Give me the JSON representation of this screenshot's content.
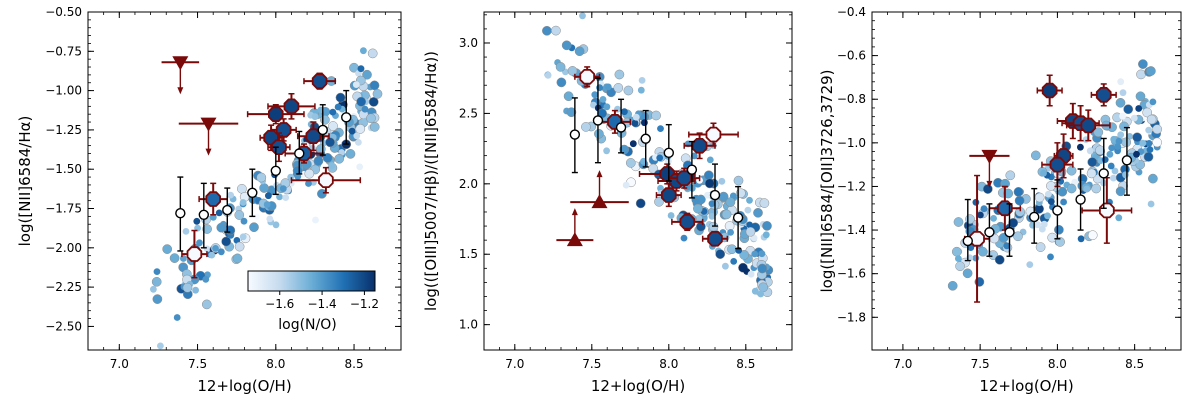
{
  "figure": {
    "colorbar": {
      "label": "log(N/O)",
      "min": -1.75,
      "max": -1.15,
      "ticks": [
        -1.6,
        -1.4,
        -1.2
      ],
      "tick_labels": [
        "−1.6",
        "−1.4",
        "−1.2"
      ],
      "colors": [
        "#f7fbff",
        "#c6dbef",
        "#6baed6",
        "#2171b5",
        "#08306b"
      ]
    },
    "series_names": [
      "cloud",
      "median",
      "stack",
      "upper limit",
      "lower limit"
    ]
  },
  "chart_data": [
    {
      "type": "scatter",
      "panel": "left",
      "xlabel": "12+log(O/H)",
      "ylabel": "log([NII]6584/Hα)",
      "xlim": [
        6.8,
        8.8
      ],
      "ylim": [
        -2.65,
        -0.5
      ],
      "xticks": [
        7.0,
        7.5,
        8.0,
        8.5
      ],
      "xtick_labels": [
        "7.0",
        "7.5",
        "8.0",
        "8.5"
      ],
      "yticks": [
        -2.5,
        -2.25,
        -2.0,
        -1.75,
        -1.5,
        -1.25,
        -1.0,
        -0.75,
        -0.5
      ],
      "ytick_labels": [
        "−2.50",
        "−2.25",
        "−2.00",
        "−1.75",
        "−1.50",
        "−1.25",
        "−1.00",
        "−0.75",
        "−0.50"
      ],
      "cloud": {
        "slope": 0.93,
        "intercept": -9.07,
        "scatter": 0.14,
        "x_range": [
          7.2,
          8.65
        ],
        "count": 220
      },
      "medians": [
        {
          "x": 7.39,
          "y": -1.78,
          "ylo": -2.02,
          "yhi": -1.55
        },
        {
          "x": 7.54,
          "y": -1.79,
          "ylo": -2.0,
          "yhi": -1.59
        },
        {
          "x": 7.69,
          "y": -1.76,
          "ylo": -1.9,
          "yhi": -1.62
        },
        {
          "x": 7.85,
          "y": -1.65,
          "ylo": -1.8,
          "yhi": -1.5
        },
        {
          "x": 8.0,
          "y": -1.51,
          "ylo": -1.66,
          "yhi": -1.36
        },
        {
          "x": 8.15,
          "y": -1.4,
          "ylo": -1.53,
          "yhi": -1.26
        },
        {
          "x": 8.3,
          "y": -1.25,
          "ylo": -1.41,
          "yhi": -1.09
        },
        {
          "x": 8.45,
          "y": -1.17,
          "ylo": -1.34,
          "yhi": -1.0
        }
      ],
      "stacks": [
        {
          "x": 7.48,
          "y": -2.04,
          "xerr": 0.08,
          "yerr": 0.15,
          "nlog": -1.75
        },
        {
          "x": 7.6,
          "y": -1.69,
          "xerr": 0.09,
          "yerr": 0.1,
          "nlog": -1.28
        },
        {
          "x": 8.0,
          "y": -1.15,
          "xerr": 0.18,
          "yerr": 0.06,
          "nlog": -1.18
        },
        {
          "x": 8.1,
          "y": -1.1,
          "xerr": 0.15,
          "yerr": 0.08,
          "nlog": -1.2
        },
        {
          "x": 8.05,
          "y": -1.25,
          "xerr": 0.08,
          "yerr": 0.07,
          "nlog": -1.22
        },
        {
          "x": 7.97,
          "y": -1.3,
          "xerr": 0.07,
          "yerr": 0.08,
          "nlog": -1.2
        },
        {
          "x": 8.02,
          "y": -1.36,
          "xerr": 0.07,
          "yerr": 0.09,
          "nlog": -1.22
        },
        {
          "x": 8.18,
          "y": -1.4,
          "xerr": 0.12,
          "yerr": 0.06,
          "nlog": -1.25
        },
        {
          "x": 8.24,
          "y": -1.29,
          "xerr": 0.1,
          "yerr": 0.09,
          "nlog": -1.21
        },
        {
          "x": 8.28,
          "y": -0.94,
          "xerr": 0.1,
          "yerr": 0.05,
          "nlog": -1.22
        },
        {
          "x": 8.32,
          "y": -1.57,
          "xerr": 0.22,
          "yerr": 0.08,
          "nlog": -1.75
        }
      ],
      "upper_limits": [
        {
          "x": 7.39,
          "y": -0.82,
          "xerr": 0.12
        },
        {
          "x": 7.57,
          "y": -1.21,
          "xerr": 0.19
        }
      ],
      "lower_limits": [],
      "colorbar_panel": true
    },
    {
      "type": "scatter",
      "panel": "middle",
      "xlabel": "12+log(O/H)",
      "ylabel": "log(([OIII]5007/Hβ)/([NII]6584/Hα))",
      "xlim": [
        6.8,
        8.8
      ],
      "ylim": [
        0.82,
        3.22
      ],
      "xticks": [
        7.0,
        7.5,
        8.0,
        8.5
      ],
      "xtick_labels": [
        "7.0",
        "7.5",
        "8.0",
        "8.5"
      ],
      "yticks": [
        1.0,
        1.5,
        2.0,
        2.5,
        3.0
      ],
      "ytick_labels": [
        "1.0",
        "1.5",
        "2.0",
        "2.5",
        "3.0"
      ],
      "cloud": {
        "slope": -0.98,
        "intercept": 9.95,
        "scatter": 0.17,
        "x_range": [
          7.2,
          8.65
        ],
        "count": 230
      },
      "medians": [
        {
          "x": 7.39,
          "y": 2.35,
          "ylo": 2.08,
          "yhi": 2.61
        },
        {
          "x": 7.54,
          "y": 2.45,
          "ylo": 2.15,
          "yhi": 2.75
        },
        {
          "x": 7.69,
          "y": 2.4,
          "ylo": 2.22,
          "yhi": 2.6
        },
        {
          "x": 7.85,
          "y": 2.32,
          "ylo": 2.12,
          "yhi": 2.52
        },
        {
          "x": 8.0,
          "y": 2.22,
          "ylo": 2.02,
          "yhi": 2.42
        },
        {
          "x": 8.15,
          "y": 2.1,
          "ylo": 1.9,
          "yhi": 2.3
        },
        {
          "x": 8.3,
          "y": 1.92,
          "ylo": 1.7,
          "yhi": 2.14
        },
        {
          "x": 8.45,
          "y": 1.76,
          "ylo": 1.54,
          "yhi": 1.98
        }
      ],
      "stacks": [
        {
          "x": 7.47,
          "y": 2.76,
          "xerr": 0.08,
          "yerr": 0.07,
          "nlog": -1.75
        },
        {
          "x": 7.65,
          "y": 2.44,
          "xerr": 0.1,
          "yerr": 0.08,
          "nlog": -1.28
        },
        {
          "x": 7.99,
          "y": 2.07,
          "xerr": 0.18,
          "yerr": 0.07,
          "nlog": -1.18
        },
        {
          "x": 8.05,
          "y": 2.02,
          "xerr": 0.12,
          "yerr": 0.07,
          "nlog": -1.2
        },
        {
          "x": 8.1,
          "y": 2.04,
          "xerr": 0.1,
          "yerr": 0.07,
          "nlog": -1.22
        },
        {
          "x": 8.0,
          "y": 1.92,
          "xerr": 0.08,
          "yerr": 0.08,
          "nlog": -1.2
        },
        {
          "x": 8.12,
          "y": 1.73,
          "xerr": 0.1,
          "yerr": 0.06,
          "nlog": -1.22
        },
        {
          "x": 8.2,
          "y": 2.27,
          "xerr": 0.1,
          "yerr": 0.09,
          "nlog": -1.21
        },
        {
          "x": 8.3,
          "y": 1.61,
          "xerr": 0.08,
          "yerr": 0.04,
          "nlog": -1.22
        },
        {
          "x": 8.29,
          "y": 2.35,
          "xerr": 0.16,
          "yerr": 0.08,
          "nlog": -1.75
        }
      ],
      "upper_limits": [],
      "lower_limits": [
        {
          "x": 7.39,
          "y": 1.6,
          "xerr": 0.12
        },
        {
          "x": 7.55,
          "y": 1.87,
          "xerr": 0.19
        }
      ],
      "colorbar_panel": false
    },
    {
      "type": "scatter",
      "panel": "right",
      "xlabel": "12+log(O/H)",
      "ylabel": "log([NII]6584/[OII]3726,3729)",
      "xlim": [
        6.8,
        8.8
      ],
      "ylim": [
        -1.95,
        -0.4
      ],
      "xticks": [
        7.0,
        7.5,
        8.0,
        8.5
      ],
      "xtick_labels": [
        "7.0",
        "7.5",
        "8.0",
        "8.5"
      ],
      "yticks": [
        -1.8,
        -1.6,
        -1.4,
        -1.2,
        -1.0,
        -0.8,
        -0.6,
        -0.4
      ],
      "ytick_labels": [
        "−1.8",
        "−1.6",
        "−1.4",
        "−1.2",
        "−1.0",
        "−0.8",
        "−0.6",
        "−0.4"
      ],
      "cloud": {
        "slope": 0.44,
        "intercept": -4.72,
        "scatter": 0.11,
        "x_range": [
          7.3,
          8.65
        ],
        "count": 230
      },
      "medians": [
        {
          "x": 7.42,
          "y": -1.45,
          "ylo": -1.54,
          "yhi": -1.26
        },
        {
          "x": 7.56,
          "y": -1.41,
          "ylo": -1.52,
          "yhi": -1.28
        },
        {
          "x": 7.69,
          "y": -1.41,
          "ylo": -1.52,
          "yhi": -1.28
        },
        {
          "x": 7.85,
          "y": -1.34,
          "ylo": -1.46,
          "yhi": -1.21
        },
        {
          "x": 8.0,
          "y": -1.31,
          "ylo": -1.44,
          "yhi": -1.17
        },
        {
          "x": 8.15,
          "y": -1.26,
          "ylo": -1.4,
          "yhi": -1.12
        },
        {
          "x": 8.3,
          "y": -1.14,
          "ylo": -1.3,
          "yhi": -0.98
        },
        {
          "x": 8.45,
          "y": -1.08,
          "ylo": -1.24,
          "yhi": -0.93
        }
      ],
      "stacks": [
        {
          "x": 7.48,
          "y": -1.44,
          "xerr": 0.08,
          "yerr": 0.29,
          "nlog": -1.75
        },
        {
          "x": 7.66,
          "y": -1.3,
          "xerr": 0.1,
          "yerr": 0.1,
          "nlog": -1.28
        },
        {
          "x": 7.95,
          "y": -0.76,
          "xerr": 0.08,
          "yerr": 0.07,
          "nlog": -1.18
        },
        {
          "x": 8.04,
          "y": -1.06,
          "xerr": 0.06,
          "yerr": 0.1,
          "nlog": -1.2
        },
        {
          "x": 8.0,
          "y": -1.1,
          "xerr": 0.1,
          "yerr": 0.1,
          "nlog": -1.22
        },
        {
          "x": 8.1,
          "y": -0.9,
          "xerr": 0.1,
          "yerr": 0.08,
          "nlog": -1.2
        },
        {
          "x": 8.15,
          "y": -0.91,
          "xerr": 0.12,
          "yerr": 0.08,
          "nlog": -1.22
        },
        {
          "x": 8.2,
          "y": -0.92,
          "xerr": 0.14,
          "yerr": 0.07,
          "nlog": -1.21
        },
        {
          "x": 8.3,
          "y": -0.78,
          "xerr": 0.08,
          "yerr": 0.05,
          "nlog": -1.22
        },
        {
          "x": 8.32,
          "y": -1.31,
          "xerr": 0.16,
          "yerr": 0.15,
          "nlog": -1.75
        }
      ],
      "upper_limits": [
        {
          "x": 7.56,
          "y": -1.06,
          "xerr": 0.13
        }
      ],
      "lower_limits": [],
      "colorbar_panel": false
    }
  ]
}
